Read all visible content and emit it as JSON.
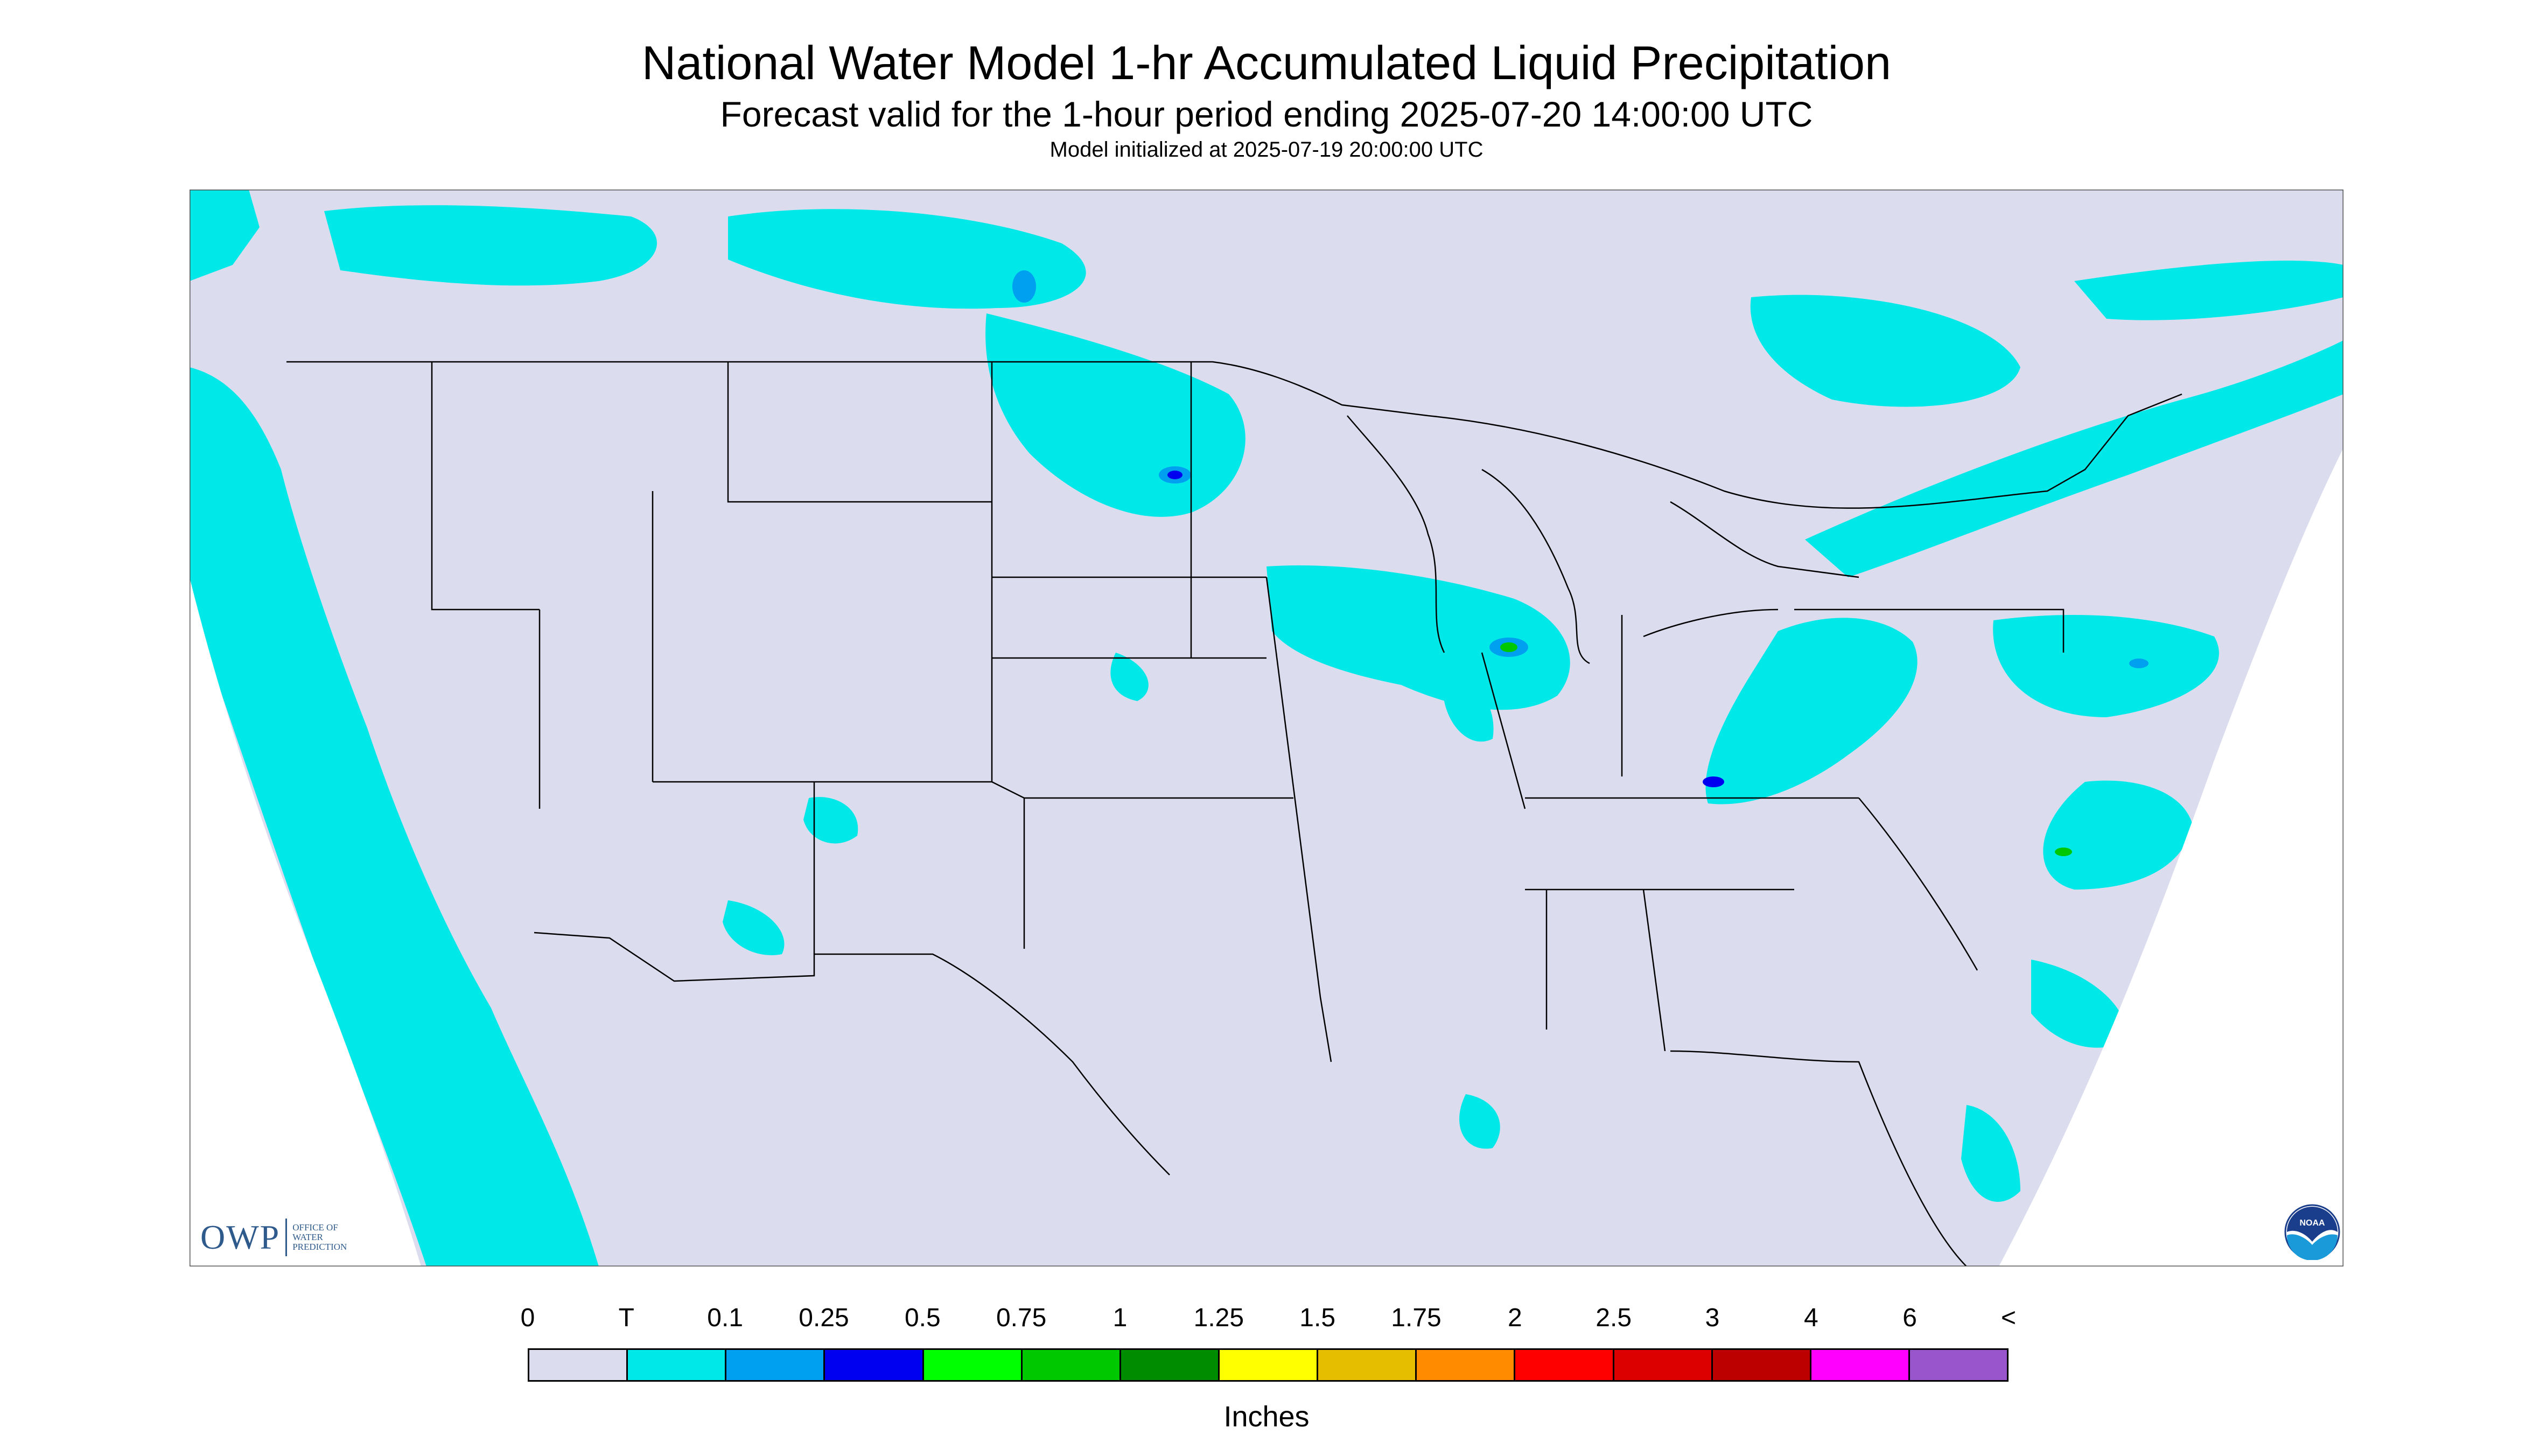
{
  "header": {
    "title": "National Water Model 1-hr Accumulated Liquid Precipitation",
    "subtitle": "Forecast valid for the 1-hour period ending 2025-07-20 14:00:00 UTC",
    "init": "Model initialized at 2025-07-19 20:00:00 UTC"
  },
  "logos": {
    "owp": "OWP",
    "owp_sub": [
      "OFFICE OF",
      "WATER",
      "PREDICTION"
    ],
    "noaa": "NOAA"
  },
  "legend": {
    "labels": [
      "0",
      "T",
      "0.1",
      "0.25",
      "0.5",
      "0.75",
      "1",
      "1.25",
      "1.5",
      "1.75",
      "2",
      "2.5",
      "3",
      "4",
      "6",
      "<"
    ],
    "colors": [
      "#dcdcef",
      "#00e8e8",
      "#00a0f0",
      "#0000f0",
      "#00ff00",
      "#00c800",
      "#008c00",
      "#ffff00",
      "#e6be00",
      "#ff8c00",
      "#ff0000",
      "#dc0000",
      "#bc0000",
      "#ff00ff",
      "#9955cc"
    ],
    "units": "Inches"
  },
  "map": {
    "background": "#dcdcef",
    "outside_domain": "#ffffff",
    "boundary_color": "#000000"
  }
}
